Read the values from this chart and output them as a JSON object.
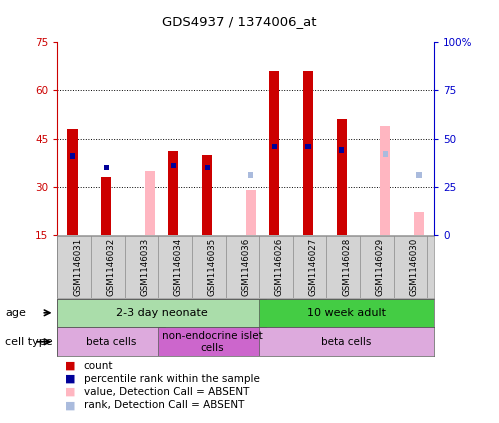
{
  "title": "GDS4937 / 1374006_at",
  "samples": [
    "GSM1146031",
    "GSM1146032",
    "GSM1146033",
    "GSM1146034",
    "GSM1146035",
    "GSM1146036",
    "GSM1146026",
    "GSM1146027",
    "GSM1146028",
    "GSM1146029",
    "GSM1146030"
  ],
  "count_red": [
    48,
    33,
    null,
    41,
    40,
    null,
    66,
    66,
    51,
    null,
    null
  ],
  "count_pink": [
    null,
    null,
    35,
    null,
    null,
    29,
    null,
    null,
    null,
    49,
    22
  ],
  "rank_blue": [
    41,
    35,
    null,
    36,
    35,
    null,
    46,
    46,
    44,
    null,
    null
  ],
  "rank_lightblue": [
    null,
    null,
    null,
    null,
    null,
    31,
    null,
    null,
    null,
    42,
    31
  ],
  "ylim_left": [
    15,
    75
  ],
  "ylim_right": [
    0,
    100
  ],
  "yticks_left": [
    15,
    30,
    45,
    60,
    75
  ],
  "yticks_right": [
    0,
    25,
    50,
    75,
    100
  ],
  "ytick_labels_right": [
    "0",
    "25",
    "50",
    "75",
    "100%"
  ],
  "age_groups": [
    {
      "label": "2-3 day neonate",
      "start": 0,
      "end": 6,
      "color": "#aaddaa"
    },
    {
      "label": "10 week adult",
      "start": 6,
      "end": 11,
      "color": "#44cc44"
    }
  ],
  "cell_type_groups": [
    {
      "label": "beta cells",
      "start": 0,
      "end": 3,
      "color": "#ddaadd"
    },
    {
      "label": "non-endocrine islet\ncells",
      "start": 3,
      "end": 6,
      "color": "#cc66cc"
    },
    {
      "label": "beta cells",
      "start": 6,
      "end": 11,
      "color": "#ddaadd"
    }
  ],
  "bar_width": 0.3,
  "color_red": "#cc0000",
  "color_pink": "#ffb6c1",
  "color_blue": "#000099",
  "color_lightblue": "#aabbdd",
  "left_axis_color": "#cc0000",
  "right_axis_color": "#0000cc",
  "grid_yticks": [
    30,
    45,
    60
  ],
  "legend_items": [
    {
      "color": "#cc0000",
      "label": "count"
    },
    {
      "color": "#000099",
      "label": "percentile rank within the sample"
    },
    {
      "color": "#ffb6c1",
      "label": "value, Detection Call = ABSENT"
    },
    {
      "color": "#aabbdd",
      "label": "rank, Detection Call = ABSENT"
    }
  ]
}
